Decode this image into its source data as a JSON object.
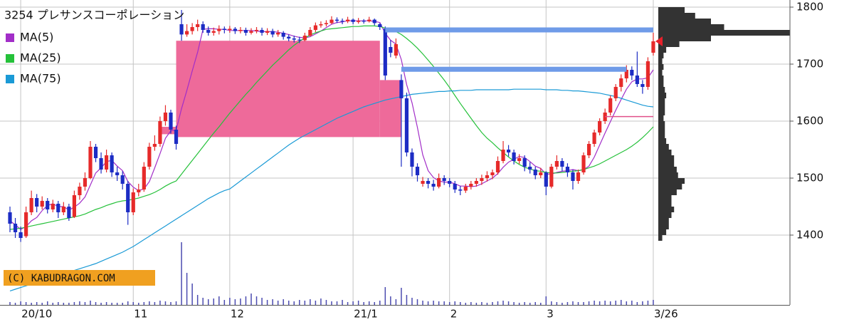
{
  "chart_data": {
    "type": "candlestick",
    "title": "3254 プレサンスコーポレーション",
    "watermark": "(C) KABUDRAGON.COM",
    "categories": [
      null,
      null,
      "20/10",
      null,
      null,
      null,
      null,
      null,
      null,
      null,
      null,
      null,
      null,
      null,
      null,
      null,
      null,
      null,
      null,
      null,
      null,
      null,
      null,
      "11",
      null,
      null,
      null,
      null,
      null,
      null,
      null,
      null,
      null,
      null,
      null,
      null,
      null,
      null,
      null,
      null,
      null,
      "12",
      null,
      null,
      null,
      null,
      null,
      null,
      null,
      null,
      null,
      null,
      null,
      null,
      null,
      null,
      null,
      null,
      null,
      null,
      null,
      null,
      null,
      null,
      "21/1",
      null,
      null,
      null,
      null,
      null,
      null,
      null,
      null,
      null,
      null,
      null,
      null,
      null,
      null,
      null,
      null,
      null,
      "2",
      null,
      null,
      null,
      null,
      null,
      null,
      null,
      null,
      null,
      null,
      null,
      null,
      null,
      null,
      null,
      null,
      null,
      "3",
      null,
      null,
      null,
      null,
      null,
      null,
      null,
      null,
      null,
      null,
      null,
      null,
      null,
      null,
      null,
      null,
      null,
      null,
      null,
      "3/26"
    ],
    "open": [
      1440,
      1420,
      1405,
      1398,
      1440,
      1465,
      1450,
      1460,
      1445,
      1455,
      1440,
      1450,
      1432,
      1470,
      1485,
      1500,
      1555,
      1535,
      1515,
      1540,
      1510,
      1505,
      1490,
      1440,
      1475,
      1480,
      1520,
      1555,
      1560,
      1600,
      1615,
      1585,
      1770,
      1752,
      1758,
      1765,
      1770,
      1760,
      1755,
      1758,
      1762,
      1760,
      1762,
      1758,
      1760,
      1755,
      1758,
      1760,
      1755,
      1758,
      1752,
      1755,
      1748,
      1745,
      1743,
      1742,
      1750,
      1760,
      1768,
      1770,
      1772,
      1778,
      1776,
      1775,
      1778,
      1774,
      1776,
      1775,
      1778,
      1770,
      1762,
      1730,
      1715,
      1672,
      1640,
      1545,
      1520,
      1490,
      1495,
      1490,
      1485,
      1500,
      1495,
      1490,
      1480,
      1478,
      1485,
      1490,
      1495,
      1500,
      1505,
      1510,
      1530,
      1550,
      1545,
      1530,
      1535,
      1520,
      1515,
      1505,
      1510,
      1485,
      1520,
      1530,
      1520,
      1510,
      1495,
      1510,
      1540,
      1560,
      1580,
      1600,
      1615,
      1640,
      1660,
      1675,
      1690,
      1680,
      1665,
      1660,
      1720
    ],
    "high": [
      1450,
      1430,
      1415,
      1450,
      1478,
      1472,
      1468,
      1465,
      1462,
      1460,
      1458,
      1455,
      1478,
      1492,
      1510,
      1565,
      1560,
      1545,
      1550,
      1545,
      1520,
      1512,
      1495,
      1482,
      1490,
      1528,
      1562,
      1575,
      1608,
      1628,
      1620,
      1592,
      1795,
      1770,
      1772,
      1778,
      1775,
      1766,
      1764,
      1768,
      1766,
      1767,
      1765,
      1765,
      1764,
      1763,
      1765,
      1764,
      1763,
      1762,
      1760,
      1758,
      1752,
      1750,
      1748,
      1755,
      1765,
      1773,
      1775,
      1777,
      1784,
      1782,
      1780,
      1783,
      1780,
      1781,
      1779,
      1783,
      1780,
      1772,
      1766,
      1742,
      1745,
      1682,
      1650,
      1552,
      1526,
      1502,
      1500,
      1497,
      1508,
      1505,
      1500,
      1495,
      1486,
      1490,
      1495,
      1500,
      1506,
      1512,
      1515,
      1538,
      1565,
      1558,
      1550,
      1542,
      1540,
      1528,
      1520,
      1518,
      1512,
      1525,
      1540,
      1535,
      1526,
      1515,
      1515,
      1545,
      1565,
      1585,
      1605,
      1622,
      1645,
      1665,
      1682,
      1698,
      1696,
      1722,
      1672,
      1712,
      1755
    ],
    "low": [
      1405,
      1395,
      1388,
      1395,
      1435,
      1440,
      1445,
      1438,
      1440,
      1430,
      1435,
      1425,
      1430,
      1462,
      1478,
      1498,
      1528,
      1508,
      1510,
      1502,
      1495,
      1480,
      1418,
      1435,
      1468,
      1476,
      1515,
      1548,
      1555,
      1592,
      1578,
      1550,
      1741,
      1748,
      1752,
      1758,
      1755,
      1750,
      1750,
      1752,
      1754,
      1755,
      1753,
      1754,
      1750,
      1752,
      1754,
      1750,
      1751,
      1747,
      1748,
      1743,
      1740,
      1738,
      1737,
      1740,
      1748,
      1756,
      1764,
      1766,
      1770,
      1772,
      1770,
      1772,
      1770,
      1771,
      1771,
      1773,
      1768,
      1760,
      1672,
      1712,
      1710,
      1520,
      1538,
      1503,
      1494,
      1485,
      1482,
      1478,
      1482,
      1488,
      1484,
      1474,
      1470,
      1474,
      1480,
      1485,
      1488,
      1494,
      1498,
      1506,
      1526,
      1538,
      1524,
      1525,
      1512,
      1508,
      1498,
      1500,
      1470,
      1482,
      1515,
      1512,
      1502,
      1480,
      1490,
      1506,
      1535,
      1555,
      1575,
      1595,
      1610,
      1635,
      1652,
      1668,
      1672,
      1660,
      1648,
      1655,
      1715
    ],
    "close": [
      1420,
      1405,
      1395,
      1440,
      1465,
      1450,
      1460,
      1445,
      1455,
      1440,
      1450,
      1430,
      1470,
      1485,
      1500,
      1555,
      1535,
      1515,
      1540,
      1510,
      1505,
      1490,
      1440,
      1475,
      1480,
      1520,
      1555,
      1560,
      1600,
      1615,
      1585,
      1560,
      1752,
      1758,
      1765,
      1770,
      1760,
      1755,
      1758,
      1762,
      1760,
      1762,
      1758,
      1760,
      1755,
      1758,
      1760,
      1755,
      1758,
      1752,
      1755,
      1748,
      1745,
      1743,
      1742,
      1750,
      1760,
      1768,
      1770,
      1772,
      1778,
      1776,
      1775,
      1778,
      1774,
      1776,
      1775,
      1778,
      1772,
      1765,
      1680,
      1720,
      1735,
      1640,
      1545,
      1520,
      1505,
      1495,
      1490,
      1485,
      1500,
      1495,
      1490,
      1480,
      1478,
      1485,
      1490,
      1495,
      1500,
      1505,
      1510,
      1530,
      1550,
      1545,
      1530,
      1535,
      1520,
      1515,
      1505,
      1510,
      1485,
      1520,
      1530,
      1520,
      1510,
      1495,
      1510,
      1540,
      1560,
      1580,
      1600,
      1615,
      1640,
      1660,
      1675,
      1690,
      1680,
      1665,
      1660,
      1705,
      1740
    ],
    "up_color": "#e62a2a",
    "down_color": "#1c2cc4",
    "ma": [
      {
        "name": "MA(5)",
        "color": "#a22ec8",
        "values": [
          1425,
          1418,
          1410,
          1415,
          1425,
          1431,
          1443,
          1452,
          1455,
          1450,
          1450,
          1444,
          1449,
          1456,
          1467,
          1488,
          1509,
          1518,
          1529,
          1531,
          1521,
          1513,
          1494,
          1484,
          1478,
          1481,
          1494,
          1518,
          1543,
          1570,
          1583,
          1584,
          1622,
          1654,
          1688,
          1721,
          1761,
          1762,
          1762,
          1761,
          1761,
          1759,
          1759,
          1759,
          1759,
          1759,
          1758,
          1757,
          1757,
          1757,
          1756,
          1754,
          1752,
          1749,
          1747,
          1746,
          1748,
          1753,
          1758,
          1764,
          1770,
          1773,
          1774,
          1776,
          1776,
          1776,
          1776,
          1776,
          1775,
          1773,
          1754,
          1742,
          1735,
          1708,
          1664,
          1632,
          1589,
          1541,
          1513,
          1501,
          1495,
          1493,
          1493,
          1490,
          1486,
          1486,
          1485,
          1486,
          1490,
          1495,
          1500,
          1508,
          1519,
          1528,
          1533,
          1538,
          1536,
          1529,
          1521,
          1517,
          1507,
          1507,
          1510,
          1512,
          1513,
          1515,
          1513,
          1515,
          1521,
          1537,
          1558,
          1579,
          1599,
          1619,
          1638,
          1656,
          1669,
          1674,
          1674,
          1676,
          1690
        ]
      },
      {
        "name": "MA(25)",
        "color": "#25c13a",
        "values": [
          1410,
          1411,
          1412,
          1414,
          1416,
          1418,
          1420,
          1422,
          1424,
          1426,
          1428,
          1430,
          1432,
          1434,
          1437,
          1441,
          1445,
          1448,
          1452,
          1455,
          1458,
          1460,
          1461,
          1463,
          1465,
          1468,
          1471,
          1475,
          1480,
          1486,
          1491,
          1495,
          1507,
          1519,
          1531,
          1543,
          1555,
          1567,
          1579,
          1590,
          1602,
          1614,
          1625,
          1636,
          1647,
          1657,
          1668,
          1678,
          1688,
          1698,
          1707,
          1716,
          1725,
          1733,
          1740,
          1746,
          1751,
          1755,
          1758,
          1761,
          1762,
          1763,
          1764,
          1765,
          1766,
          1766,
          1767,
          1767,
          1767,
          1766,
          1763,
          1760,
          1757,
          1752,
          1745,
          1737,
          1728,
          1718,
          1707,
          1696,
          1684,
          1672,
          1659,
          1645,
          1631,
          1618,
          1605,
          1592,
          1580,
          1570,
          1562,
          1553,
          1545,
          1537,
          1530,
          1524,
          1519,
          1516,
          1513,
          1512,
          1510,
          1509,
          1509,
          1510,
          1511,
          1512,
          1513,
          1515,
          1518,
          1521,
          1525,
          1530,
          1535,
          1540,
          1545,
          1550,
          1556,
          1563,
          1571,
          1580,
          1590
        ]
      },
      {
        "name": "MA(75)",
        "color": "#1a9ad6",
        "values": [
          1302,
          1305,
          1308,
          1311,
          1314,
          1317,
          1320,
          1323,
          1326,
          1329,
          1332,
          1335,
          1338,
          1341,
          1344,
          1347,
          1350,
          1354,
          1358,
          1362,
          1366,
          1370,
          1375,
          1380,
          1386,
          1392,
          1398,
          1404,
          1410,
          1416,
          1422,
          1428,
          1434,
          1440,
          1446,
          1452,
          1458,
          1464,
          1469,
          1474,
          1478,
          1481,
          1488,
          1495,
          1502,
          1509,
          1516,
          1523,
          1530,
          1537,
          1544,
          1551,
          1558,
          1564,
          1570,
          1575,
          1580,
          1585,
          1590,
          1595,
          1600,
          1605,
          1609,
          1613,
          1617,
          1621,
          1625,
          1628,
          1631,
          1634,
          1637,
          1639,
          1641,
          1643,
          1645,
          1647,
          1648,
          1649,
          1650,
          1651,
          1652,
          1652,
          1653,
          1653,
          1654,
          1654,
          1654,
          1655,
          1655,
          1655,
          1655,
          1655,
          1655,
          1655,
          1656,
          1656,
          1656,
          1656,
          1656,
          1656,
          1655,
          1655,
          1655,
          1654,
          1654,
          1653,
          1653,
          1652,
          1651,
          1650,
          1649,
          1647,
          1645,
          1643,
          1640,
          1637,
          1634,
          1631,
          1628,
          1626,
          1625
        ]
      }
    ],
    "volume": {
      "color": "#4b4bb0",
      "ylim": [
        0,
        100
      ],
      "values": [
        4,
        3,
        5,
        4,
        3,
        4,
        3,
        5,
        3,
        4,
        3,
        3,
        4,
        5,
        4,
        6,
        4,
        3,
        4,
        3,
        3,
        3,
        5,
        4,
        3,
        4,
        5,
        4,
        6,
        5,
        4,
        5,
        88,
        45,
        30,
        14,
        10,
        8,
        9,
        12,
        7,
        10,
        8,
        9,
        12,
        16,
        12,
        10,
        7,
        8,
        6,
        8,
        6,
        5,
        7,
        6,
        8,
        6,
        9,
        7,
        5,
        5,
        7,
        4,
        5,
        6,
        4,
        5,
        4,
        6,
        25,
        12,
        8,
        24,
        14,
        10,
        8,
        6,
        5,
        6,
        5,
        5,
        4,
        5,
        4,
        3,
        4,
        3,
        4,
        3,
        4,
        5,
        6,
        5,
        4,
        3,
        4,
        3,
        4,
        3,
        12,
        5,
        4,
        3,
        4,
        5,
        4,
        4,
        5,
        6,
        5,
        6,
        5,
        6,
        7,
        5,
        6,
        4,
        5,
        6,
        7
      ]
    },
    "profile": {
      "color": "#333333",
      "xlim": [
        0,
        100
      ],
      "bins": [
        1390,
        1400,
        1410,
        1420,
        1430,
        1440,
        1450,
        1460,
        1470,
        1480,
        1490,
        1500,
        1510,
        1520,
        1530,
        1540,
        1550,
        1560,
        1570,
        1580,
        1590,
        1600,
        1610,
        1620,
        1630,
        1640,
        1650,
        1660,
        1670,
        1680,
        1690,
        1700,
        1710,
        1720,
        1730,
        1740,
        1750,
        1760,
        1770,
        1780,
        1790,
        1800
      ],
      "values": [
        3,
        6,
        8,
        8,
        10,
        12,
        10,
        10,
        14,
        18,
        20,
        15,
        14,
        12,
        12,
        10,
        8,
        6,
        5,
        5,
        5,
        4,
        5,
        5,
        5,
        6,
        5,
        4,
        4,
        3,
        4,
        3,
        4,
        6,
        16,
        40,
        100,
        50,
        40,
        28,
        20
      ]
    },
    "zones": [
      {
        "start": 31,
        "end": 69,
        "low": 1572,
        "high": 1741,
        "color": "#ee6a9a"
      },
      {
        "start": 69,
        "end": 73,
        "low": 1572,
        "high": 1672,
        "color": "#ee6a9a"
      },
      {
        "start": 28,
        "end": 31,
        "low": 1577,
        "high": 1590,
        "color": "#ee6a9a"
      }
    ],
    "levels": [
      {
        "value": 1760,
        "start": 70,
        "end": 120,
        "color": "#6f9be8"
      },
      {
        "value": 1691,
        "start": 73,
        "end": 115,
        "color": "#6f9be8"
      }
    ],
    "lines": [
      {
        "value": 1608,
        "start": 111,
        "end": 120,
        "color": "#e0508a"
      }
    ],
    "marker_color": "#e8202a",
    "ylim": [
      1277.5,
      1812.5
    ],
    "yticks": [
      1400,
      1500,
      1600,
      1700,
      1800
    ],
    "grid": true
  }
}
